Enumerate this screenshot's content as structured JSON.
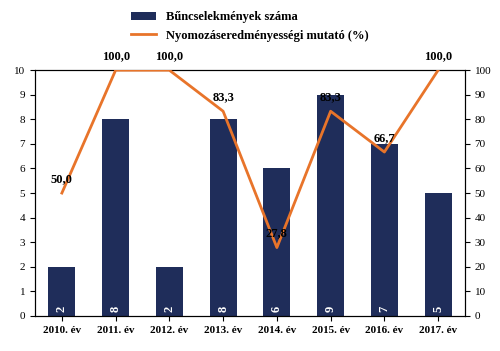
{
  "chart_data": {
    "type": "bar",
    "categories": [
      "2010. év",
      "2011. év",
      "2012. év",
      "2013. év",
      "2014. év",
      "2015. év",
      "2016. év",
      "2017. év"
    ],
    "series": [
      {
        "name": "Bűncselekmények száma",
        "type": "bar",
        "color": "#1f2d5a",
        "values": [
          2,
          8,
          2,
          8,
          6,
          9,
          7,
          5
        ]
      },
      {
        "name": "Nyomozáseredményességi mutató (%)",
        "type": "line",
        "color": "#e8742a",
        "axis": "y2",
        "values": [
          50.0,
          100.0,
          100.0,
          83.3,
          27.8,
          83.3,
          66.7,
          100.0
        ],
        "value_labels": [
          "50,0",
          "100,0",
          "100,0",
          "83,3",
          "27,8",
          "83,3",
          "66,7",
          "100,0"
        ]
      }
    ],
    "ylim": [
      0,
      10
    ],
    "yticks": [
      0,
      1,
      2,
      3,
      4,
      5,
      6,
      7,
      8,
      9,
      10
    ],
    "y2lim": [
      0,
      100
    ],
    "y2ticks": [
      0,
      10,
      20,
      30,
      40,
      50,
      60,
      70,
      80,
      90,
      100
    ],
    "data_labels": true,
    "legend": "upper center",
    "grid": false
  }
}
